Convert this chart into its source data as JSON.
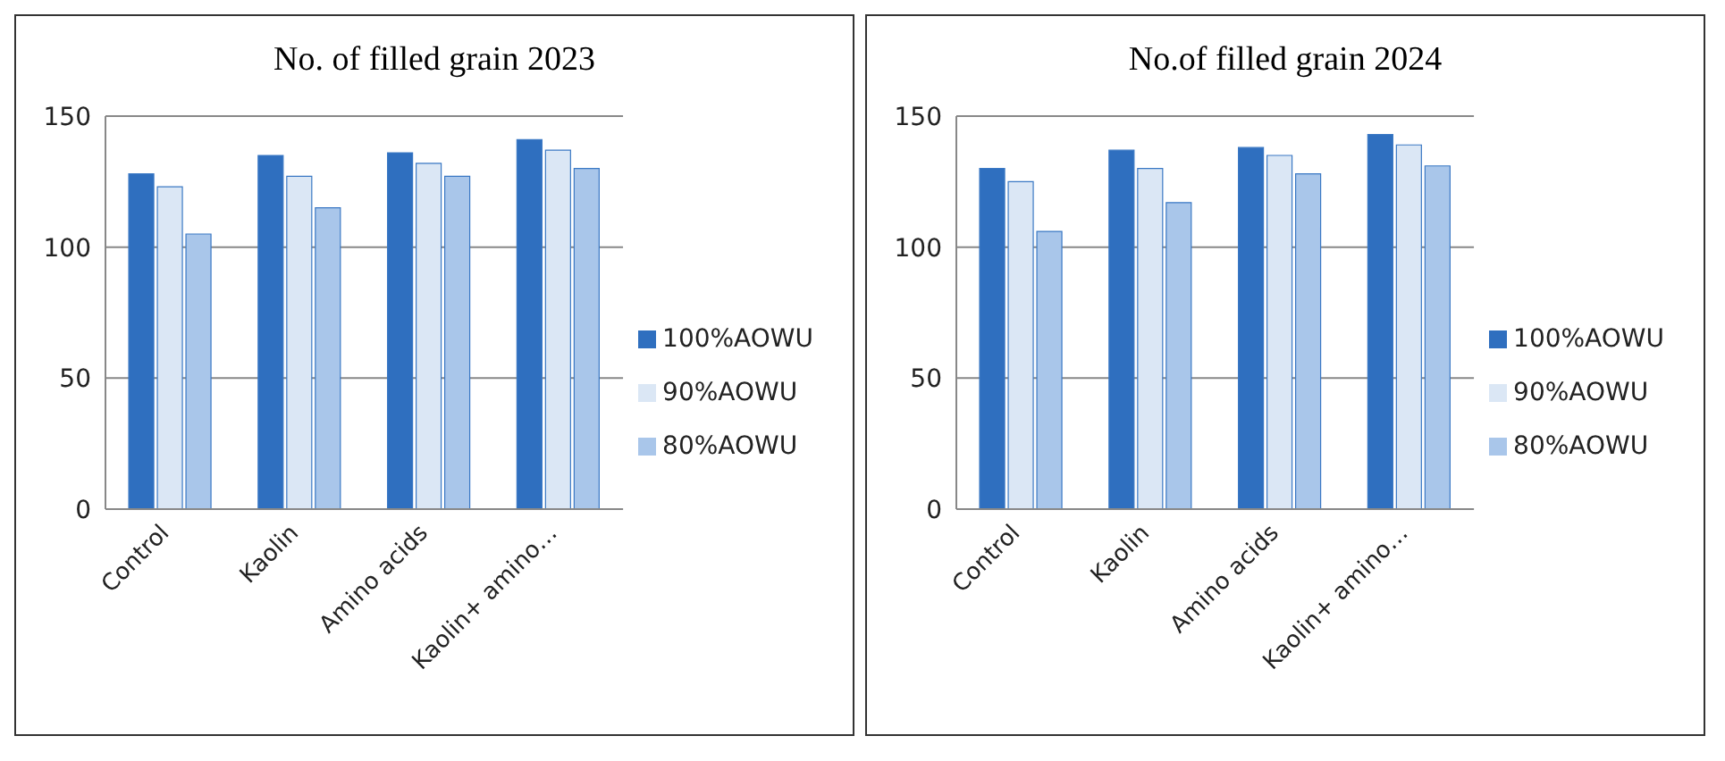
{
  "chart_data": [
    {
      "type": "bar",
      "title": "No. of filled grain 2023",
      "categories": [
        "Control",
        "Kaolin",
        "Amino acids",
        "Kaolin+ amino…"
      ],
      "series": [
        {
          "name": "100%AOWU",
          "color": "#2f6fbf",
          "values": [
            128,
            135,
            136,
            141
          ]
        },
        {
          "name": "90%AOWU",
          "color": "#dbe7f5",
          "values": [
            123,
            127,
            132,
            137
          ]
        },
        {
          "name": "80%AOWU",
          "color": "#a9c6ea",
          "values": [
            105,
            115,
            127,
            130
          ]
        }
      ],
      "ylim": [
        0,
        150
      ],
      "yticks": [
        0,
        50,
        100,
        150
      ],
      "grid": "y",
      "legend": "right"
    },
    {
      "type": "bar",
      "title": "No.of filled grain 2024",
      "categories": [
        "Control",
        "Kaolin",
        "Amino acids",
        "Kaolin+ amino…"
      ],
      "series": [
        {
          "name": "100%AOWU",
          "color": "#2f6fbf",
          "values": [
            130,
            137,
            138,
            143
          ]
        },
        {
          "name": "90%AOWU",
          "color": "#dbe7f5",
          "values": [
            125,
            130,
            135,
            139
          ]
        },
        {
          "name": "80%AOWU",
          "color": "#a9c6ea",
          "values": [
            106,
            117,
            128,
            131
          ]
        }
      ],
      "ylim": [
        0,
        150
      ],
      "yticks": [
        0,
        50,
        100,
        150
      ],
      "grid": "y",
      "legend": "right"
    }
  ]
}
